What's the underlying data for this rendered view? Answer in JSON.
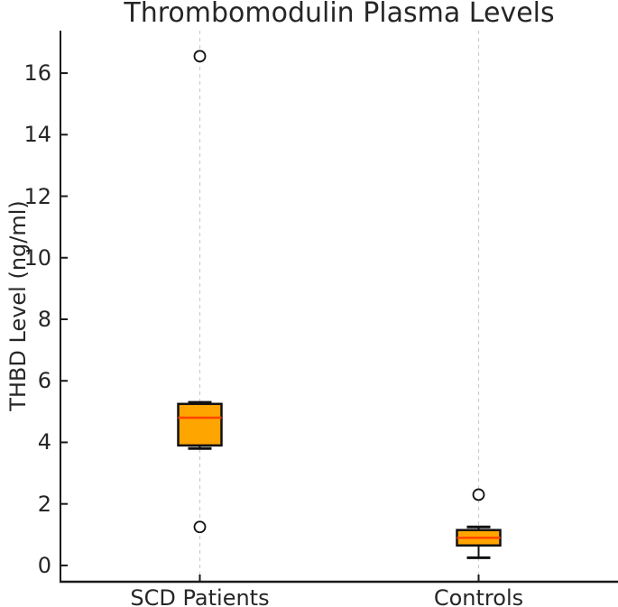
{
  "chart_data": {
    "type": "box",
    "title": "Thrombomodulin Plasma Levels",
    "xlabel": "",
    "ylabel": "THBD Level (ng/ml)",
    "categories": [
      "SCD Patients",
      "Controls"
    ],
    "y_ticks": [
      0,
      2,
      4,
      6,
      8,
      10,
      12,
      14,
      16
    ],
    "ylim": [
      -0.53,
      17.38
    ],
    "grid": "vertical-dashed-at-each-category",
    "legend": "none",
    "series": [
      {
        "name": "SCD Patients",
        "whisker_low": 3.8,
        "q1": 3.9,
        "median": 4.8,
        "q3": 5.25,
        "whisker_high": 5.3,
        "outliers": [
          1.25,
          16.55
        ]
      },
      {
        "name": "Controls",
        "whisker_low": 0.25,
        "q1": 0.65,
        "median": 0.9,
        "q3": 1.15,
        "whisker_high": 1.25,
        "outliers": [
          2.3
        ]
      }
    ],
    "colors": {
      "box_fill": "#FFA500",
      "box_edge": "#111111",
      "median": "#FF4500",
      "whisker": "#111111",
      "grid": "#cccccc",
      "spine": "#1a1a1a",
      "tick": "#1a1a1a",
      "text": "#262626",
      "outlier_fill": "#ffffff",
      "outlier_edge": "#111111"
    }
  }
}
